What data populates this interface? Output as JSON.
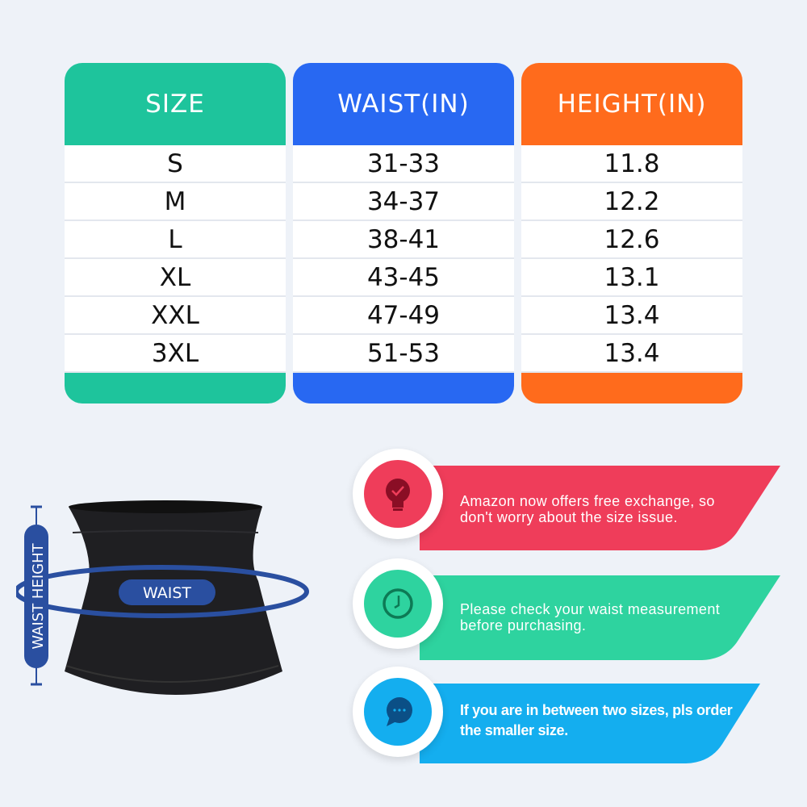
{
  "table": {
    "columns": [
      {
        "header": "SIZE",
        "color": "#1ec49c",
        "values": [
          "S",
          "M",
          "L",
          "XL",
          "XXL",
          "3XL"
        ]
      },
      {
        "header": "WAIST(IN)",
        "color": "#2868f2",
        "values": [
          "31-33",
          "34-37",
          "38-41",
          "43-45",
          "47-49",
          "51-53"
        ]
      },
      {
        "header": "HEIGHT(IN)",
        "color": "#ff6b1c",
        "values": [
          "11.8",
          "12.2",
          "12.6",
          "13.1",
          "13.4",
          "13.4"
        ]
      }
    ]
  },
  "diagram": {
    "waist_label": "WAIST",
    "height_label": "WAIST HEIGHT",
    "accent": "#2a4fa0"
  },
  "tips": [
    {
      "icon": "lightbulb-check-icon",
      "color": "#ef3d5a",
      "text1": "Amazon now offers free exchange, so",
      "text2": "don't worry about the size issue."
    },
    {
      "icon": "clock-icon",
      "color": "#2ed39f",
      "text1": "Please check your waist measurement",
      "text2": "before purchasing."
    },
    {
      "icon": "chat-bubble-icon",
      "color": "#14aeef",
      "text1": "If you are in between two sizes, pls order",
      "text2": "the smaller size."
    }
  ]
}
